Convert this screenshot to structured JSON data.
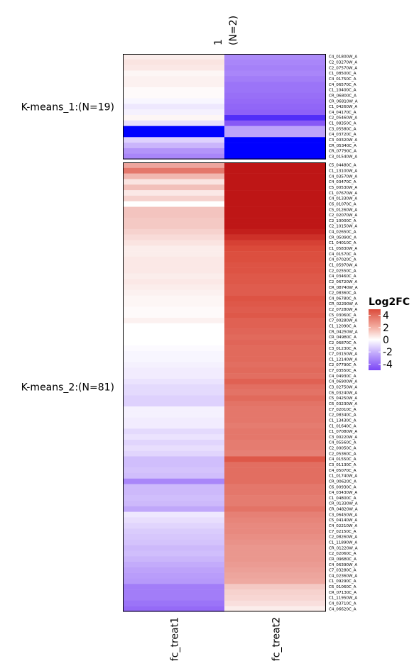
{
  "chart_data": {
    "type": "heatmap",
    "columns": [
      "fc_treat1",
      "fc_treat2"
    ],
    "column_group": {
      "name": "1",
      "count": "(N=2)"
    },
    "legend": {
      "title": "Log2FC",
      "ticks": [
        4,
        2,
        0,
        -2,
        -4
      ],
      "range": [
        -5,
        5
      ]
    },
    "clusters": [
      {
        "label": "K-means_1:(N=19)",
        "rows": [
          {
            "id": "C4_01800W_A",
            "v": [
              0.4,
              -2.5
            ]
          },
          {
            "id": "C2_03270W_A",
            "v": [
              0.6,
              -2.6
            ]
          },
          {
            "id": "C2_07570W_A",
            "v": [
              0.5,
              -2.7
            ]
          },
          {
            "id": "C1_08500C_A",
            "v": [
              0.2,
              -2.6
            ]
          },
          {
            "id": "C4_01750C_A",
            "v": [
              0.3,
              -2.8
            ]
          },
          {
            "id": "C4_06570C_A",
            "v": [
              0.3,
              -3.0
            ]
          },
          {
            "id": "C1_10400C_A",
            "v": [
              0.1,
              -3.0
            ]
          },
          {
            "id": "CR_06800C_A",
            "v": [
              0.1,
              -3.1
            ]
          },
          {
            "id": "CR_06810W_A",
            "v": [
              -0.2,
              -3.2
            ]
          },
          {
            "id": "C1_04260W_A",
            "v": [
              -0.5,
              -3.3
            ]
          },
          {
            "id": "C4_04170C_A",
            "v": [
              -0.3,
              -3.4
            ]
          },
          {
            "id": "C2_05460W_A",
            "v": [
              0.2,
              -4.2
            ]
          },
          {
            "id": "C1_08350C_A",
            "v": [
              -0.7,
              -3.6
            ]
          },
          {
            "id": "C3_05580C_A",
            "v": [
              -5.0,
              -2.0
            ]
          },
          {
            "id": "C4_03720C_A",
            "v": [
              -5.0,
              -2.0
            ]
          },
          {
            "id": "C3_00320W_A",
            "v": [
              -1.0,
              -5.0
            ]
          },
          {
            "id": "CR_05340C_A",
            "v": [
              -1.6,
              -5.0
            ]
          },
          {
            "id": "CR_07790C_A",
            "v": [
              -2.3,
              -5.0
            ]
          },
          {
            "id": "C3_01540W_A",
            "v": [
              -2.6,
              -5.0
            ]
          }
        ]
      },
      {
        "label": "K-means_2:(N=81)",
        "rows": [
          {
            "id": "C5_04480C_A",
            "v": [
              2.0,
              5.0
            ]
          },
          {
            "id": "C1_13100W_A",
            "v": [
              3.0,
              5.0
            ]
          },
          {
            "id": "C4_03570W_A",
            "v": [
              1.6,
              5.0
            ]
          },
          {
            "id": "C4_03470C_A",
            "v": [
              0.6,
              5.0
            ]
          },
          {
            "id": "C5_00530W_A",
            "v": [
              1.4,
              5.0
            ]
          },
          {
            "id": "C1_07670W_A",
            "v": [
              0.5,
              5.0
            ]
          },
          {
            "id": "C4_01330W_A",
            "v": [
              1.0,
              5.0
            ]
          },
          {
            "id": "C6_01070C_A",
            "v": [
              0.0,
              5.0
            ]
          },
          {
            "id": "C5_01260W_A",
            "v": [
              1.3,
              5.0
            ]
          },
          {
            "id": "C2_02070W_A",
            "v": [
              1.3,
              5.0
            ]
          },
          {
            "id": "C2_10000C_A",
            "v": [
              1.2,
              5.0
            ]
          },
          {
            "id": "C2_10150W_A",
            "v": [
              1.2,
              4.8
            ]
          },
          {
            "id": "C4_02650C_A",
            "v": [
              1.0,
              4.5
            ]
          },
          {
            "id": "CR_05090C_A",
            "v": [
              0.8,
              4.3
            ]
          },
          {
            "id": "C1_04010C_A",
            "v": [
              0.6,
              4.1
            ]
          },
          {
            "id": "C1_05830W_A",
            "v": [
              0.4,
              4.0
            ]
          },
          {
            "id": "C4_01570C_A",
            "v": [
              0.4,
              3.9
            ]
          },
          {
            "id": "C4_07020C_A",
            "v": [
              0.5,
              3.9
            ]
          },
          {
            "id": "C1_05970W_A",
            "v": [
              0.5,
              3.8
            ]
          },
          {
            "id": "C2_02550C_A",
            "v": [
              0.5,
              3.8
            ]
          },
          {
            "id": "C4_03460C_A",
            "v": [
              0.4,
              3.7
            ]
          },
          {
            "id": "C2_06720W_A",
            "v": [
              0.5,
              3.7
            ]
          },
          {
            "id": "CR_08740W_A",
            "v": [
              0.4,
              3.6
            ]
          },
          {
            "id": "C2_08360C_A",
            "v": [
              0.3,
              3.6
            ]
          },
          {
            "id": "C4_06780C_A",
            "v": [
              0.2,
              3.8
            ]
          },
          {
            "id": "CR_02290W_A",
            "v": [
              0.2,
              3.7
            ]
          },
          {
            "id": "C2_07280W_A",
            "v": [
              0.1,
              3.6
            ]
          },
          {
            "id": "C5_03060C_A",
            "v": [
              0.1,
              3.7
            ]
          },
          {
            "id": "C7_00280W_A",
            "v": [
              0.3,
              3.5
            ]
          },
          {
            "id": "C1_12090C_A",
            "v": [
              0.0,
              3.5
            ]
          },
          {
            "id": "CR_04250W_A",
            "v": [
              0.0,
              3.4
            ]
          },
          {
            "id": "CR_04980C_A",
            "v": [
              0.0,
              3.3
            ]
          },
          {
            "id": "C2_06870C_A",
            "v": [
              0.0,
              3.4
            ]
          },
          {
            "id": "C3_01230C_A",
            "v": [
              -0.1,
              3.3
            ]
          },
          {
            "id": "C7_03150W_A",
            "v": [
              -0.2,
              3.3
            ]
          },
          {
            "id": "C1_12140W_A",
            "v": [
              -0.2,
              3.3
            ]
          },
          {
            "id": "C2_07790C_A",
            "v": [
              -0.3,
              3.2
            ]
          },
          {
            "id": "C7_03550C_A",
            "v": [
              -0.4,
              3.3
            ]
          },
          {
            "id": "C4_04930C_A",
            "v": [
              -0.4,
              3.2
            ]
          },
          {
            "id": "C4_06900W_A",
            "v": [
              -0.6,
              3.5
            ]
          },
          {
            "id": "C3_02750W_A",
            "v": [
              -0.8,
              3.2
            ]
          },
          {
            "id": "C6_03240W_A",
            "v": [
              -0.8,
              3.1
            ]
          },
          {
            "id": "C5_04250W_A",
            "v": [
              -1.0,
              3.3
            ]
          },
          {
            "id": "C6_03230W_A",
            "v": [
              -1.0,
              3.1
            ]
          },
          {
            "id": "C7_02010C_A",
            "v": [
              -0.3,
              3.0
            ]
          },
          {
            "id": "C2_08340C_A",
            "v": [
              -0.3,
              3.0
            ]
          },
          {
            "id": "C1_13430C_A",
            "v": [
              -0.4,
              3.0
            ]
          },
          {
            "id": "C1_01640C_A",
            "v": [
              -0.4,
              2.9
            ]
          },
          {
            "id": "C1_07080W_A",
            "v": [
              -0.8,
              3.0
            ]
          },
          {
            "id": "C3_00220W_A",
            "v": [
              -0.6,
              3.0
            ]
          },
          {
            "id": "C4_05560C_A",
            "v": [
              -0.9,
              2.9
            ]
          },
          {
            "id": "C2_00050C_A",
            "v": [
              -0.7,
              2.9
            ]
          },
          {
            "id": "C2_05360C_A",
            "v": [
              -0.9,
              2.8
            ]
          },
          {
            "id": "C4_01550C_A",
            "v": [
              -1.4,
              3.7
            ]
          },
          {
            "id": "C3_01130C_A",
            "v": [
              -1.4,
              3.2
            ]
          },
          {
            "id": "C4_05070C_A",
            "v": [
              -1.3,
              3.2
            ]
          },
          {
            "id": "C1_01740W_A",
            "v": [
              -1.4,
              3.2
            ]
          },
          {
            "id": "CR_00620C_A",
            "v": [
              -2.6,
              3.2
            ]
          },
          {
            "id": "C6_00930C_A",
            "v": [
              -1.5,
              3.0
            ]
          },
          {
            "id": "C4_03430W_A",
            "v": [
              -1.5,
              3.0
            ]
          },
          {
            "id": "C1_04800C_A",
            "v": [
              -1.4,
              2.9
            ]
          },
          {
            "id": "CR_01330W_A",
            "v": [
              -1.5,
              2.9
            ]
          },
          {
            "id": "CR_04820W_A",
            "v": [
              -1.9,
              3.1
            ]
          },
          {
            "id": "C3_06450W_A",
            "v": [
              -0.5,
              2.8
            ]
          },
          {
            "id": "C5_04140W_A",
            "v": [
              -0.7,
              2.7
            ]
          },
          {
            "id": "C4_02210W_A",
            "v": [
              -0.9,
              2.6
            ]
          },
          {
            "id": "C7_02150C_A",
            "v": [
              -1.1,
              2.6
            ]
          },
          {
            "id": "C2_08260W_A",
            "v": [
              -1.2,
              2.5
            ]
          },
          {
            "id": "C1_11890W_A",
            "v": [
              -1.3,
              2.4
            ]
          },
          {
            "id": "CR_01220W_A",
            "v": [
              -1.5,
              2.3
            ]
          },
          {
            "id": "C2_02060C_A",
            "v": [
              -1.4,
              2.3
            ]
          },
          {
            "id": "CR_09680C_A",
            "v": [
              -1.6,
              2.3
            ]
          },
          {
            "id": "C4_06390W_A",
            "v": [
              -1.8,
              2.2
            ]
          },
          {
            "id": "C7_03280C_A",
            "v": [
              -2.0,
              2.1
            ]
          },
          {
            "id": "C4_02360W_A",
            "v": [
              -2.1,
              2.0
            ]
          },
          {
            "id": "C1_09290C_A",
            "v": [
              -2.2,
              1.9
            ]
          },
          {
            "id": "C6_01060C_A",
            "v": [
              -2.8,
              1.2
            ]
          },
          {
            "id": "CR_07130C_A",
            "v": [
              -2.8,
              1.0
            ]
          },
          {
            "id": "C1_11950W_A",
            "v": [
              -2.8,
              0.9
            ]
          },
          {
            "id": "C4_03710C_A",
            "v": [
              -3.0,
              0.7
            ]
          },
          {
            "id": "C4_06620C_A",
            "v": [
              -3.2,
              0.4
            ]
          }
        ]
      }
    ]
  }
}
